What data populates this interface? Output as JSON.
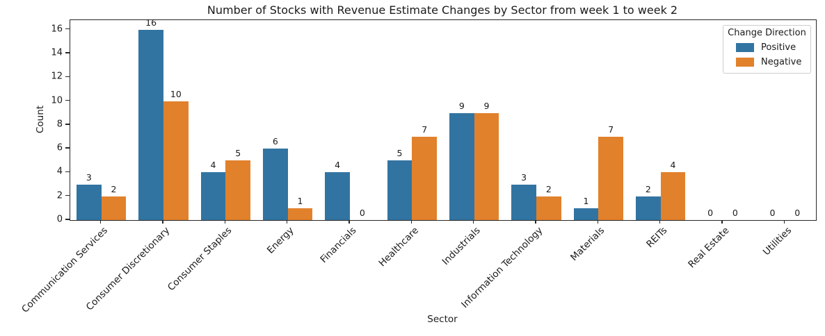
{
  "chart_data": {
    "type": "bar",
    "title": "Number of Stocks with Revenue Estimate Changes by Sector from week 1 to week 2",
    "xlabel": "Sector",
    "ylabel": "Count",
    "categories": [
      "Communication Services",
      "Consumer Discretionary",
      "Consumer Staples",
      "Energy",
      "Financials",
      "Healthcare",
      "Industrials",
      "Information Technology",
      "Materials",
      "REITs",
      "Real Estate",
      "Utilities"
    ],
    "series": [
      {
        "name": "Positive",
        "color": "#3274a1",
        "values": [
          3,
          16,
          4,
          6,
          4,
          5,
          9,
          3,
          1,
          2,
          0,
          0
        ]
      },
      {
        "name": "Negative",
        "color": "#e1812c",
        "values": [
          2,
          10,
          5,
          1,
          0,
          7,
          9,
          2,
          7,
          4,
          0,
          0
        ]
      }
    ],
    "ylim": [
      0,
      16.8
    ],
    "yticks": [
      0,
      2,
      4,
      6,
      8,
      10,
      12,
      14,
      16
    ],
    "bar_value_labels": true,
    "grid": false,
    "legend": {
      "title": "Change Direction",
      "position": "upper right",
      "entries": [
        "Positive",
        "Negative"
      ]
    }
  }
}
